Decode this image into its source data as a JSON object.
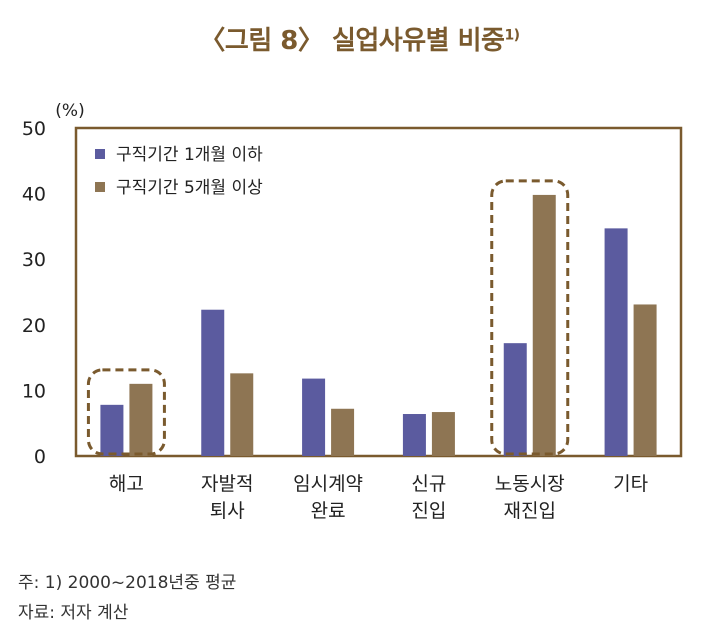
{
  "title": {
    "text": "〈그림 8〉 실업사유별 비중",
    "sup": "1)"
  },
  "notes": {
    "note1": "주: 1) 2000~2018년중 평균",
    "note2": "자료: 저자 계산"
  },
  "chart_data": {
    "type": "bar",
    "ylabel": "(%)",
    "ylim": [
      0,
      50
    ],
    "yticks": [
      0,
      10,
      20,
      30,
      40,
      50
    ],
    "categories": [
      [
        "해고"
      ],
      [
        "자발적",
        "퇴사"
      ],
      [
        "임시계약",
        "완료"
      ],
      [
        "신규",
        "진입"
      ],
      [
        "노동시장",
        "재진입"
      ],
      [
        "기타"
      ]
    ],
    "series": [
      {
        "name": "구직기간 1개월 이하",
        "color": "#5b5b9f",
        "values": [
          7.8,
          22.3,
          11.8,
          6.4,
          17.2,
          34.7
        ]
      },
      {
        "name": "구직기간 5개월 이상",
        "color": "#8e7553",
        "values": [
          11.0,
          12.6,
          7.2,
          6.7,
          39.8,
          23.1
        ]
      }
    ],
    "highlighted_categories": [
      0,
      4
    ],
    "legend": "top-left",
    "grid": false,
    "colors": {
      "frame": "#7a5a2e",
      "highlight_border": "#7a5a2e"
    }
  }
}
